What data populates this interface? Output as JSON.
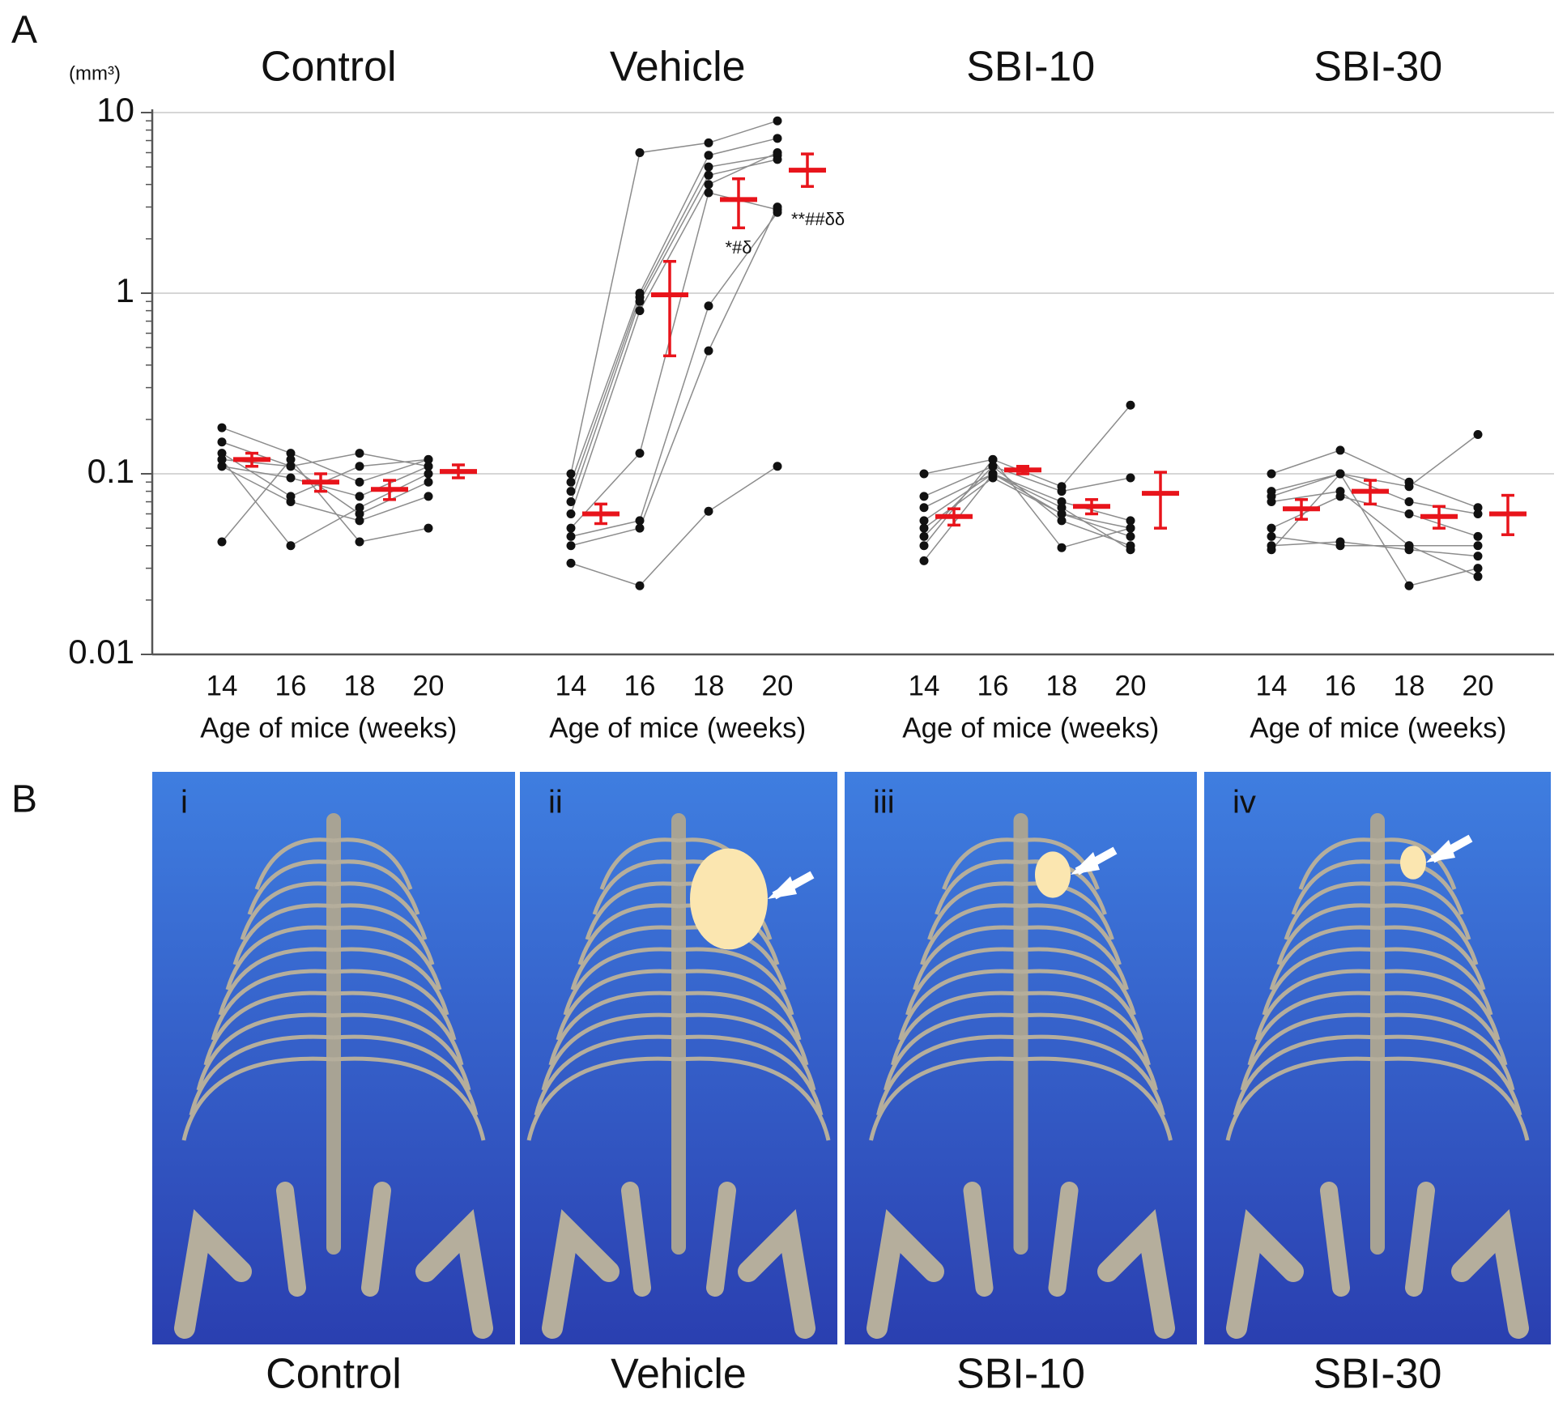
{
  "chart_data": {
    "type": "line",
    "panel_label": "A",
    "ylabel": "(mm³)",
    "log_scale": true,
    "grid": true,
    "minor_ticks": true,
    "ylim": [
      0.01,
      10
    ],
    "yticks": [
      0.01,
      0.1,
      1,
      10
    ],
    "point_color": "#111111",
    "line_color": "#8c8c8c",
    "mean_color": "#e8141b",
    "groups": [
      {
        "title": "Control",
        "xlabel": "Age of mice (weeks)",
        "x": [
          14,
          16,
          18,
          20
        ],
        "mice": [
          [
            0.18,
            0.13,
            0.09,
            0.12
          ],
          [
            0.15,
            0.11,
            0.13,
            0.11
          ],
          [
            0.13,
            0.075,
            0.11,
            0.12
          ],
          [
            0.12,
            0.11,
            0.06,
            0.09
          ],
          [
            0.11,
            0.07,
            0.055,
            0.075
          ],
          [
            0.11,
            0.095,
            0.075,
            0.11
          ],
          [
            0.042,
            0.12,
            0.042,
            0.05
          ],
          [
            0.12,
            0.04,
            0.065,
            0.1
          ]
        ],
        "mean": [
          0.12,
          0.09,
          0.082,
          0.103
        ],
        "lower": [
          0.11,
          0.08,
          0.072,
          0.095
        ],
        "upper": [
          0.13,
          0.1,
          0.092,
          0.112
        ],
        "significance": [
          null,
          null,
          null,
          null
        ]
      },
      {
        "title": "Vehicle",
        "xlabel": "Age of mice (weeks)",
        "x": [
          14,
          16,
          18,
          20
        ],
        "mice": [
          [
            0.1,
            6,
            6.8,
            9
          ],
          [
            0.09,
            1.0,
            5.8,
            7.2
          ],
          [
            0.08,
            0.95,
            5.0,
            5.8
          ],
          [
            0.07,
            0.9,
            4.5,
            5.5
          ],
          [
            0.06,
            0.8,
            4.0,
            6.0
          ],
          [
            0.05,
            0.13,
            3.6,
            2.9
          ],
          [
            0.045,
            0.055,
            0.85,
            2.8
          ],
          [
            0.04,
            0.05,
            0.48,
            3.0
          ],
          [
            0.032,
            0.024,
            0.062,
            0.11
          ]
        ],
        "mean": [
          0.06,
          0.98,
          3.3,
          4.8
        ],
        "lower": [
          0.053,
          0.45,
          2.3,
          3.9
        ],
        "upper": [
          0.068,
          1.5,
          4.3,
          5.9
        ],
        "significance": [
          null,
          null,
          "*#δ",
          "**##δδ"
        ]
      },
      {
        "title": "SBI-10",
        "xlabel": "Age of mice (weeks)",
        "x": [
          14,
          16,
          18,
          20
        ],
        "mice": [
          [
            0.1,
            0.12,
            0.085,
            0.24
          ],
          [
            0.075,
            0.11,
            0.08,
            0.095
          ],
          [
            0.065,
            0.1,
            0.07,
            0.055
          ],
          [
            0.055,
            0.1,
            0.06,
            0.05
          ],
          [
            0.05,
            0.095,
            0.06,
            0.045
          ],
          [
            0.045,
            0.11,
            0.055,
            0.04
          ],
          [
            0.04,
            0.12,
            0.039,
            0.05
          ],
          [
            0.033,
            0.1,
            0.065,
            0.038
          ]
        ],
        "mean": [
          0.058,
          0.105,
          0.066,
          0.078
        ],
        "lower": [
          0.052,
          0.1,
          0.06,
          0.05
        ],
        "upper": [
          0.064,
          0.11,
          0.072,
          0.102
        ],
        "significance": [
          null,
          null,
          null,
          null
        ]
      },
      {
        "title": "SBI-30",
        "xlabel": "Age of mice (weeks)",
        "x": [
          14,
          16,
          18,
          20
        ],
        "mice": [
          [
            0.1,
            0.135,
            0.09,
            0.065
          ],
          [
            0.08,
            0.1,
            0.085,
            0.165
          ],
          [
            0.075,
            0.1,
            0.07,
            0.06
          ],
          [
            0.05,
            0.075,
            0.06,
            0.045
          ],
          [
            0.045,
            0.04,
            0.04,
            0.04
          ],
          [
            0.04,
            0.042,
            0.038,
            0.035
          ],
          [
            0.038,
            0.1,
            0.024,
            0.03
          ],
          [
            0.07,
            0.08,
            0.04,
            0.027
          ]
        ],
        "mean": [
          0.064,
          0.08,
          0.058,
          0.06
        ],
        "lower": [
          0.056,
          0.068,
          0.05,
          0.046
        ],
        "upper": [
          0.072,
          0.092,
          0.066,
          0.076
        ],
        "significance": [
          null,
          null,
          null,
          null
        ]
      }
    ]
  },
  "figure_b": {
    "panel_label": "B",
    "panels": [
      {
        "numeral": "i",
        "caption": "Control"
      },
      {
        "numeral": "ii",
        "caption": "Vehicle"
      },
      {
        "numeral": "iii",
        "caption": "SBI-10"
      },
      {
        "numeral": "iv",
        "caption": "SBI-30"
      }
    ]
  }
}
